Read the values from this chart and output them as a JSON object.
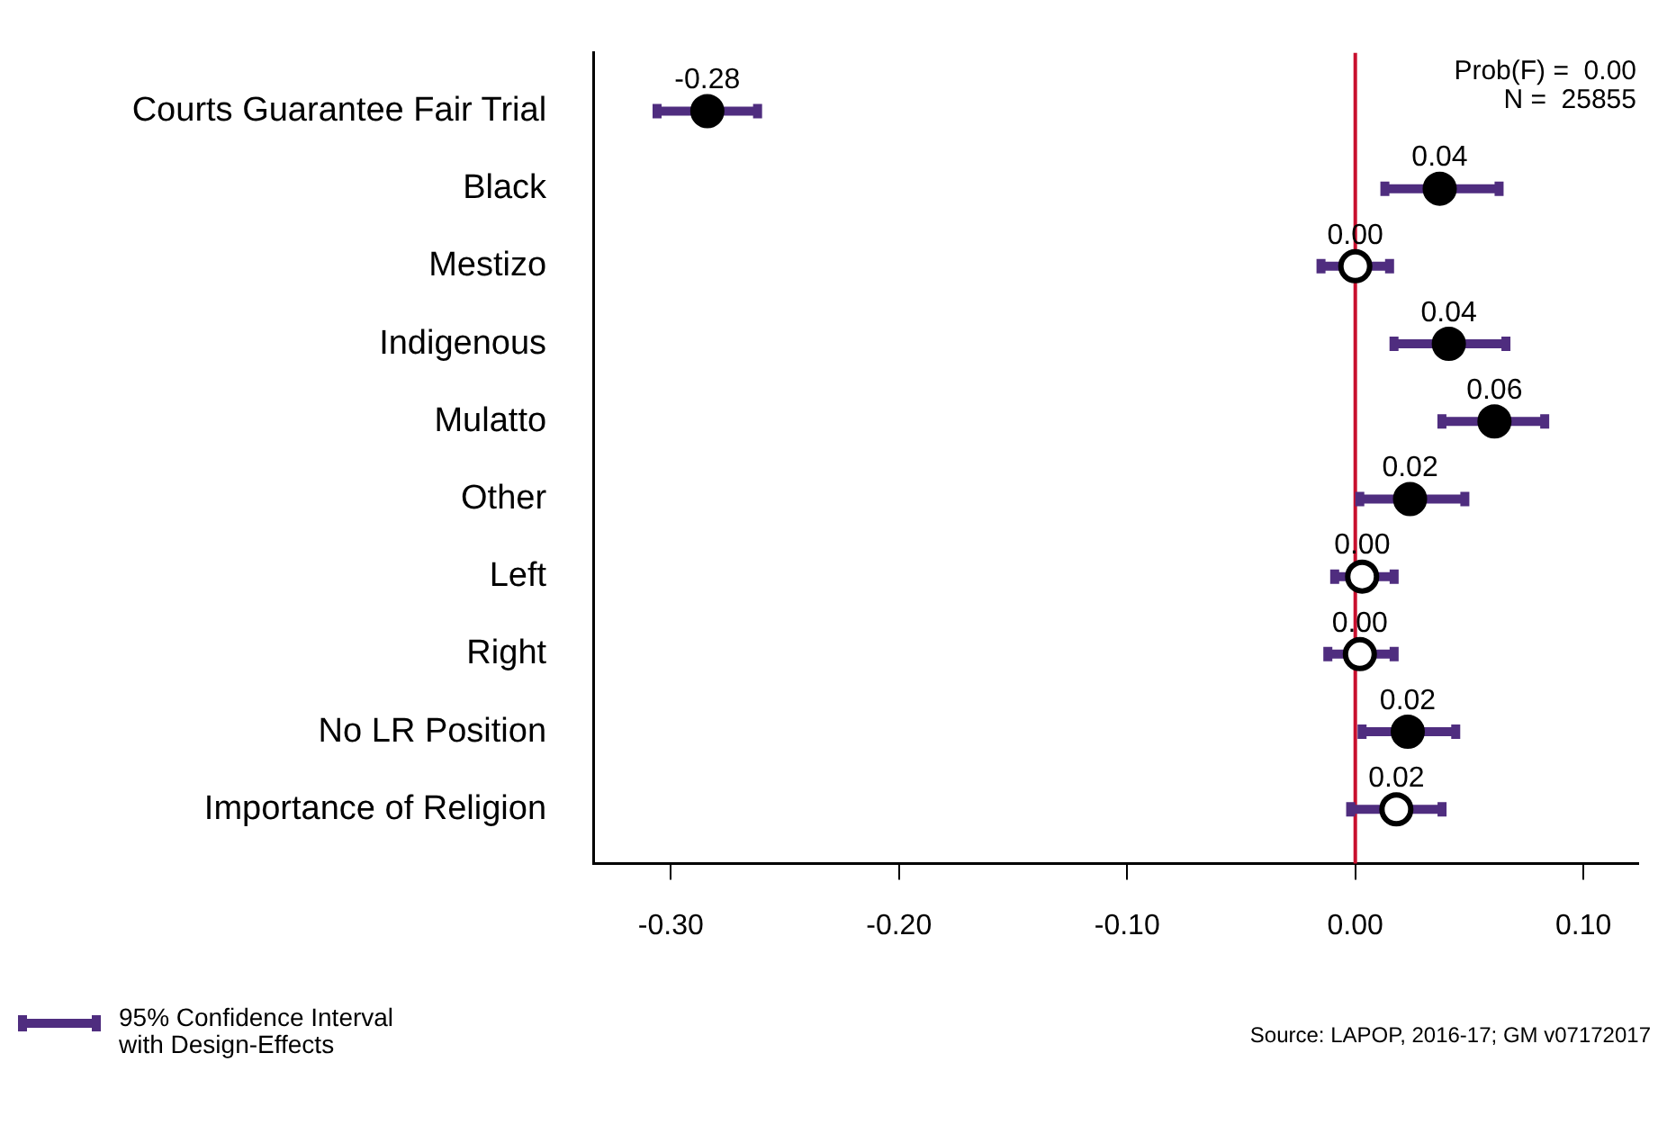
{
  "chart_data": {
    "type": "scatter",
    "orientation": "horizontal",
    "categories": [
      "Courts Guarantee Fair Trial",
      "Black",
      "Mestizo",
      "Indigenous",
      "Mulatto",
      "Other",
      "Left",
      "Right",
      "No LR Position",
      "Importance of Religion"
    ],
    "series": [
      {
        "name": "95% Confidence Interval with Design-Effects",
        "color": "#4f2d7f",
        "values": [
          -0.284,
          0.037,
          0.0,
          0.041,
          0.061,
          0.024,
          0.003,
          0.002,
          0.023,
          0.018
        ],
        "colors": [
          "#000000",
          "#000000",
          "#ffffff",
          "#000000",
          "#000000",
          "#000000",
          "#ffffff",
          "#ffffff",
          "#000000",
          "#ffffff"
        ],
        "errors": [
          [
            -0.308,
            -0.26
          ],
          [
            0.011,
            0.065
          ],
          [
            -0.017,
            0.017
          ],
          [
            0.015,
            0.068
          ],
          [
            0.036,
            0.085
          ],
          [
            0.0,
            0.05
          ],
          [
            -0.011,
            0.019
          ],
          [
            -0.014,
            0.019
          ],
          [
            0.001,
            0.046
          ],
          [
            -0.004,
            0.04
          ]
        ],
        "value_labels": [
          "-0.28",
          "0.04",
          "0.00",
          "0.04",
          "0.06",
          "0.02",
          "0.00",
          "0.00",
          "0.02",
          "0.02"
        ]
      }
    ],
    "xlim": [
      -0.334,
      0.124
    ],
    "xticks": [
      {
        "value": -0.3,
        "label": "-0.30"
      },
      {
        "value": -0.2,
        "label": "-0.20"
      },
      {
        "value": -0.1,
        "label": "-0.10"
      },
      {
        "value": 0,
        "label": "0.00"
      },
      {
        "value": 0.1,
        "label": "0.10"
      }
    ],
    "ref_lines": [
      {
        "axis": "x",
        "value": 0,
        "color": "#c8102e"
      }
    ],
    "marker": "circle",
    "grid": false,
    "legend": "bottom left",
    "annotations": [
      "Prob(F) =  0.00",
      "N =  25855",
      "Source: LAPOP, 2016-17; GM v07172017"
    ]
  }
}
